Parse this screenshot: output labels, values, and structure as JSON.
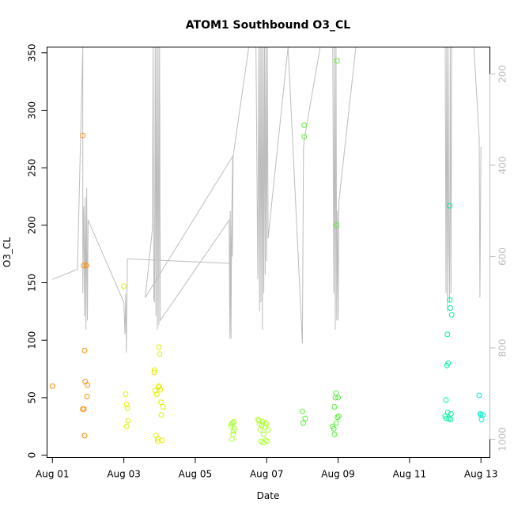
{
  "chart_data": {
    "type": "scatter",
    "title": "ATOM1 Southbound O3_CL",
    "xlabel": "Date",
    "ylabel": "O3_CL",
    "x_unit": "day of August",
    "xlim": [
      0.85,
      13.25
    ],
    "ylim": [
      -2,
      355
    ],
    "x_ticks": [
      {
        "x": 1,
        "label": "Aug 01"
      },
      {
        "x": 3,
        "label": "Aug 03"
      },
      {
        "x": 5,
        "label": "Aug 05"
      },
      {
        "x": 7,
        "label": "Aug 07"
      },
      {
        "x": 9,
        "label": "Aug 09"
      },
      {
        "x": 11,
        "label": "Aug 11"
      },
      {
        "x": 13,
        "label": "Aug 13"
      }
    ],
    "y_ticks": [
      0,
      50,
      100,
      150,
      200,
      250,
      300,
      350
    ],
    "right_axis": {
      "ylim": [
        141,
        1040
      ],
      "reversed": true,
      "ticks": [
        200,
        400,
        600,
        800,
        1000
      ],
      "color": "#bdbdbd"
    },
    "grid": false,
    "legend": "none",
    "series": [
      {
        "color": "#FF8C00",
        "points": [
          [
            1.0,
            60
          ],
          [
            1.85,
            278
          ],
          [
            1.85,
            40
          ],
          [
            1.88,
            40
          ],
          [
            1.88,
            165
          ],
          [
            1.9,
            91
          ],
          [
            1.9,
            17
          ],
          [
            1.92,
            64
          ],
          [
            1.95,
            165
          ],
          [
            1.97,
            51
          ],
          [
            1.98,
            61
          ]
        ]
      },
      {
        "color": "#E0EE00",
        "points": [
          [
            3.0,
            147
          ],
          [
            3.05,
            53
          ],
          [
            3.08,
            44
          ],
          [
            3.08,
            25
          ],
          [
            3.1,
            41
          ],
          [
            3.12,
            30
          ],
          [
            3.85,
            72
          ],
          [
            3.86,
            74
          ],
          [
            3.88,
            56
          ],
          [
            3.9,
            17
          ],
          [
            3.92,
            53
          ],
          [
            3.95,
            14
          ],
          [
            3.95,
            12
          ],
          [
            3.97,
            59
          ],
          [
            3.98,
            94
          ],
          [
            3.99,
            60
          ],
          [
            4.0,
            88
          ],
          [
            4.02,
            57
          ],
          [
            4.04,
            46
          ],
          [
            4.05,
            35
          ],
          [
            4.07,
            13
          ],
          [
            4.1,
            42
          ]
        ]
      },
      {
        "color": "#ADFF2F",
        "points": [
          [
            6.0,
            25
          ],
          [
            6.02,
            27
          ],
          [
            6.03,
            14
          ],
          [
            6.05,
            28
          ],
          [
            6.06,
            18
          ],
          [
            6.07,
            21
          ],
          [
            6.08,
            29
          ],
          [
            6.1,
            23
          ],
          [
            6.76,
            31
          ],
          [
            6.78,
            30
          ],
          [
            6.8,
            27
          ],
          [
            6.82,
            22
          ],
          [
            6.84,
            12
          ],
          [
            6.86,
            26
          ],
          [
            6.88,
            29
          ],
          [
            6.9,
            11
          ],
          [
            6.92,
            18
          ],
          [
            6.95,
            24
          ],
          [
            6.97,
            28
          ],
          [
            6.98,
            13
          ],
          [
            7.0,
            27
          ],
          [
            7.02,
            12
          ],
          [
            7.04,
            22
          ]
        ]
      },
      {
        "color": "#55EE33",
        "points": [
          [
            8.0,
            38
          ],
          [
            8.02,
            28
          ],
          [
            8.05,
            287
          ],
          [
            8.05,
            277
          ],
          [
            8.08,
            32
          ],
          [
            8.85,
            25
          ],
          [
            8.88,
            23
          ],
          [
            8.9,
            18
          ],
          [
            8.9,
            42
          ],
          [
            8.92,
            50
          ],
          [
            8.94,
            54
          ],
          [
            8.95,
            28
          ],
          [
            8.96,
            200
          ],
          [
            8.97,
            343
          ],
          [
            8.98,
            33
          ],
          [
            9.0,
            50
          ],
          [
            9.02,
            34
          ]
        ]
      },
      {
        "color": "#00F0A0",
        "points": [
          [
            12.0,
            34
          ],
          [
            12.02,
            48
          ],
          [
            12.03,
            32
          ],
          [
            12.05,
            78
          ],
          [
            12.06,
            105
          ],
          [
            12.07,
            37
          ],
          [
            12.08,
            80
          ],
          [
            12.1,
            32
          ],
          [
            12.12,
            217
          ],
          [
            12.13,
            135
          ],
          [
            12.14,
            128
          ],
          [
            12.15,
            31
          ],
          [
            12.16,
            36
          ],
          [
            12.18,
            122
          ]
        ]
      },
      {
        "color": "#00F0D0",
        "points": [
          [
            12.95,
            52
          ],
          [
            12.98,
            36
          ],
          [
            13.0,
            35
          ],
          [
            13.02,
            31
          ],
          [
            13.05,
            35
          ]
        ]
      }
    ],
    "line_series": [
      {
        "axis": "right",
        "color": "#bdbdbd",
        "points": [
          [
            1.0,
            650
          ],
          [
            1.7,
            628
          ],
          [
            1.85,
            140
          ],
          [
            1.85,
            680
          ],
          [
            1.87,
            510
          ],
          [
            1.88,
            490
          ],
          [
            1.9,
            730
          ],
          [
            1.92,
            470
          ],
          [
            1.94,
            760
          ],
          [
            1.96,
            450
          ],
          [
            1.98,
            740
          ],
          [
            2.0,
            520
          ],
          [
            3.0,
            700
          ],
          [
            3.03,
            770
          ],
          [
            3.05,
            680
          ],
          [
            3.07,
            810
          ],
          [
            3.1,
            605
          ],
          [
            6.0,
            615
          ],
          [
            6.05,
            380
          ],
          [
            3.6,
            690
          ],
          [
            3.8,
            540
          ],
          [
            3.82,
            140
          ],
          [
            3.84,
            690
          ],
          [
            3.86,
            700
          ],
          [
            3.88,
            140
          ],
          [
            3.9,
            730
          ],
          [
            3.92,
            140
          ],
          [
            3.94,
            760
          ],
          [
            3.96,
            140
          ],
          [
            3.98,
            750
          ],
          [
            4.0,
            140
          ],
          [
            4.02,
            740
          ],
          [
            5.95,
            520
          ],
          [
            5.97,
            780
          ],
          [
            5.98,
            500
          ],
          [
            6.0,
            780
          ],
          [
            6.02,
            510
          ],
          [
            6.04,
            600
          ],
          [
            6.06,
            380
          ],
          [
            6.5,
            140
          ],
          [
            6.7,
            140
          ],
          [
            6.75,
            650
          ],
          [
            6.78,
            140
          ],
          [
            6.8,
            720
          ],
          [
            6.82,
            140
          ],
          [
            6.84,
            700
          ],
          [
            6.86,
            140
          ],
          [
            6.88,
            760
          ],
          [
            6.9,
            140
          ],
          [
            6.92,
            680
          ],
          [
            6.94,
            140
          ],
          [
            6.96,
            640
          ],
          [
            6.98,
            140
          ],
          [
            7.0,
            610
          ],
          [
            7.02,
            140
          ],
          [
            7.04,
            560
          ],
          [
            7.6,
            140
          ],
          [
            8.0,
            790
          ],
          [
            8.03,
            360
          ],
          [
            8.06,
            340
          ],
          [
            8.5,
            140
          ],
          [
            8.85,
            140
          ],
          [
            8.88,
            680
          ],
          [
            8.9,
            140
          ],
          [
            8.92,
            760
          ],
          [
            8.94,
            140
          ],
          [
            8.96,
            740
          ],
          [
            8.98,
            500
          ],
          [
            9.0,
            740
          ],
          [
            9.02,
            480
          ],
          [
            9.5,
            140
          ],
          [
            12.0,
            140
          ],
          [
            12.02,
            680
          ],
          [
            12.04,
            140
          ],
          [
            12.06,
            720
          ],
          [
            12.08,
            140
          ],
          [
            12.1,
            560
          ],
          [
            12.12,
            700
          ],
          [
            12.14,
            140
          ],
          [
            12.16,
            680
          ],
          [
            12.18,
            140
          ],
          [
            12.8,
            140
          ],
          [
            12.95,
            340
          ],
          [
            12.97,
            690
          ],
          [
            13.0,
            360
          ]
        ]
      }
    ]
  }
}
